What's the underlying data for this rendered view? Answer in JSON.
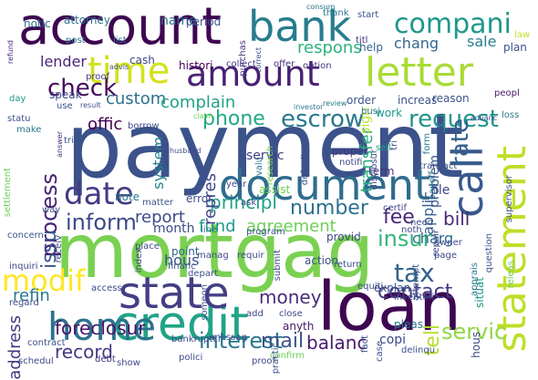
{
  "words": [
    {
      "text": "payment",
      "color": "#3b528b"
    },
    {
      "text": "mortgag",
      "color": "#7ad151"
    },
    {
      "text": "loan",
      "color": "#3e0751"
    },
    {
      "text": "account",
      "color": "#3e0751"
    },
    {
      "text": "credit",
      "color": "#20a386"
    },
    {
      "text": "document",
      "color": "#2f6c8e"
    },
    {
      "text": "state",
      "color": "#433e85"
    },
    {
      "text": "statement",
      "color": "#bddf26"
    },
    {
      "text": "letter",
      "color": "#a8db34"
    },
    {
      "text": "time",
      "color": "#d2e21b"
    },
    {
      "text": "amount",
      "color": "#482173"
    },
    {
      "text": "bank",
      "color": "#287c8e"
    },
    {
      "text": "call",
      "color": "#38598c"
    },
    {
      "text": "home",
      "color": "#2c728e"
    },
    {
      "text": "date",
      "color": "#443a83"
    },
    {
      "text": "compani",
      "color": "#1f988b"
    },
    {
      "text": "escrow",
      "color": "#2a788e"
    },
    {
      "text": "inform",
      "color": "#3e4989"
    },
    {
      "text": "check",
      "color": "#460a5d"
    },
    {
      "text": "request",
      "color": "#1f948c"
    },
    {
      "text": "tax",
      "color": "#33638d"
    },
    {
      "text": "modif",
      "color": "#fde725"
    },
    {
      "text": "insur",
      "color": "#35b779"
    },
    {
      "text": "interest",
      "color": "#2a788e"
    },
    {
      "text": "servic",
      "color": "#8fd744"
    },
    {
      "text": "contact",
      "color": "#443a83"
    },
    {
      "text": "money",
      "color": "#472d7b"
    },
    {
      "text": "fee",
      "color": "#482878"
    },
    {
      "text": "phone",
      "color": "#22a884"
    },
    {
      "text": "rate",
      "color": "#355f8d"
    },
    {
      "text": "report",
      "color": "#3e4989"
    },
    {
      "text": "number",
      "color": "#2d708e"
    },
    {
      "text": "foreclosur",
      "color": "#481467"
    },
    {
      "text": "process",
      "color": "#482173"
    },
    {
      "text": "mail",
      "color": "#3b528b"
    },
    {
      "text": "balanc",
      "color": "#481b6d"
    },
    {
      "text": "principl",
      "color": "#1fa187"
    },
    {
      "text": "bill",
      "color": "#482878"
    },
    {
      "text": "tell",
      "color": "#b5de2b"
    },
    {
      "text": "custom",
      "color": "#2c728e"
    },
    {
      "text": "complain",
      "color": "#20a386"
    },
    {
      "text": "transfer",
      "color": "#29af7f"
    },
    {
      "text": "respons",
      "color": "#2db27d"
    },
    {
      "text": "issu",
      "color": "#3b528b"
    },
    {
      "text": "record",
      "color": "#453781"
    },
    {
      "text": "refin",
      "color": "#2a788e"
    },
    {
      "text": "offic",
      "color": "#440154"
    },
    {
      "text": "fund",
      "color": "#1e9b8a"
    },
    {
      "text": "agreement",
      "color": "#6ece58"
    },
    {
      "text": "lender",
      "color": "#482576"
    },
    {
      "text": "repres",
      "color": "#3f4788"
    },
    {
      "text": "chang",
      "color": "#31688e"
    },
    {
      "text": "sale",
      "color": "#277f8e"
    },
    {
      "text": "system",
      "color": "#26828e"
    },
    {
      "text": "applic",
      "color": "#355f8d"
    },
    {
      "text": "problem",
      "color": "#3b528b"
    },
    {
      "text": "month",
      "color": "#3e4989"
    },
    {
      "text": "charg",
      "color": "#2f6c8e"
    },
    {
      "text": "file",
      "color": "#3e4989"
    },
    {
      "text": "hous",
      "color": "#3b528b"
    },
    {
      "text": "address",
      "color": "#453781"
    },
    {
      "text": "copi",
      "color": "#3e4989"
    },
    {
      "text": "pleas",
      "color": "#2a788e"
    },
    {
      "text": "point",
      "color": "#33638d"
    },
    {
      "text": "sign",
      "color": "#bddf26"
    },
    {
      "text": "anyth",
      "color": "#481769"
    },
    {
      "text": "name",
      "color": "#2c728e"
    },
    {
      "text": "notic",
      "color": "#2d708e"
    },
    {
      "text": "attorney",
      "color": "#2c728e"
    },
    {
      "text": "period",
      "color": "#3b528b"
    },
    {
      "text": "cash",
      "color": "#3f4788"
    },
    {
      "text": "histori",
      "color": "#440154"
    },
    {
      "text": "collect",
      "color": "#433e85"
    },
    {
      "text": "offer",
      "color": "#472d7b"
    },
    {
      "text": "option",
      "color": "#46337f"
    },
    {
      "text": "order",
      "color": "#3b528b"
    },
    {
      "text": "reason",
      "color": "#3b528b"
    },
    {
      "text": "increas",
      "color": "#3b528b"
    },
    {
      "text": "work",
      "color": "#1f988b"
    },
    {
      "text": "busi",
      "color": "#2a788e"
    },
    {
      "text": "help",
      "color": "#33638d"
    },
    {
      "text": "speak",
      "color": "#3e4989"
    },
    {
      "text": "post",
      "color": "#2a788e"
    },
    {
      "text": "list",
      "color": "#2a788e"
    },
    {
      "text": "purchas",
      "color": "#46337f"
    },
    {
      "text": "correct",
      "color": "#3e4989"
    },
    {
      "text": "thank",
      "color": "#2a788e"
    },
    {
      "text": "consum",
      "color": "#2a788e"
    },
    {
      "text": "start",
      "color": "#3b528b"
    },
    {
      "text": "titl",
      "color": "#46337f"
    },
    {
      "text": "plan",
      "color": "#3b528b"
    },
    {
      "text": "law",
      "color": "#bddf26"
    },
    {
      "text": "peopl",
      "color": "#481467"
    },
    {
      "text": "loss",
      "color": "#2a788e"
    },
    {
      "text": "advanc",
      "color": "#3b528b"
    },
    {
      "text": "sell",
      "color": "#20a386"
    },
    {
      "text": "review",
      "color": "#2a788e"
    },
    {
      "text": "investor",
      "color": "#2a788e"
    },
    {
      "text": "use",
      "color": "#3b528b"
    },
    {
      "text": "result",
      "color": "#3b528b"
    },
    {
      "text": "proof",
      "color": "#433e85"
    },
    {
      "text": "advis",
      "color": "#3b528b"
    },
    {
      "text": "borrow",
      "color": "#3e4989"
    },
    {
      "text": "claim",
      "color": "#6ece58"
    },
    {
      "text": "trial",
      "color": "#3b528b"
    },
    {
      "text": "answer",
      "color": "#482878"
    },
    {
      "text": "settlement",
      "color": "#6ece58"
    },
    {
      "text": "make",
      "color": "#2a788e"
    },
    {
      "text": "day",
      "color": "#1f988b"
    },
    {
      "text": "statu",
      "color": "#3b528b"
    },
    {
      "text": "refund",
      "color": "#482878"
    },
    {
      "text": "servic",
      "color": "#433e85"
    },
    {
      "text": "paper",
      "color": "#3e4989"
    },
    {
      "text": "husband",
      "color": "#3e4989"
    },
    {
      "text": "valu",
      "color": "#2a788e"
    },
    {
      "text": "research",
      "color": "#7ad151"
    },
    {
      "text": "default",
      "color": "#3b528b"
    },
    {
      "text": "proper",
      "color": "#46337f"
    },
    {
      "text": "term",
      "color": "#46337f"
    },
    {
      "text": "notifi",
      "color": "#3e4989"
    },
    {
      "text": "disclosur",
      "color": "#3e4989"
    },
    {
      "text": "tri",
      "color": "#3b528b"
    },
    {
      "text": "form",
      "color": "#2a788e"
    },
    {
      "text": "transact",
      "color": "#3b528b"
    },
    {
      "text": "payoff",
      "color": "#2a788e"
    },
    {
      "text": "incom",
      "color": "#3b528b"
    },
    {
      "text": "supervisor",
      "color": "#3b528b"
    },
    {
      "text": "certif",
      "color": "#3e4989"
    },
    {
      "text": "need",
      "color": "#3b528b"
    },
    {
      "text": "noth",
      "color": "#3e4989"
    },
    {
      "text": "provid",
      "color": "#3e4989"
    },
    {
      "text": "owner",
      "color": "#3e4989"
    },
    {
      "text": "question",
      "color": "#3b528b"
    },
    {
      "text": "repair",
      "color": "#3e4989"
    },
    {
      "text": "situat",
      "color": "#1f988b"
    },
    {
      "text": "releas",
      "color": "#6ece58"
    },
    {
      "text": "page",
      "color": "#3e4989"
    },
    {
      "text": "way",
      "color": "#3b528b"
    },
    {
      "text": "note",
      "color": "#2a788e"
    },
    {
      "text": "matter",
      "color": "#3b528b"
    },
    {
      "text": "error",
      "color": "#3e4989"
    },
    {
      "text": "year",
      "color": "#3e4989"
    },
    {
      "text": "assist",
      "color": "#6ece58"
    },
    {
      "text": "ask",
      "color": "#3e4989"
    },
    {
      "text": "place",
      "color": "#3e4989"
    },
    {
      "text": "line",
      "color": "#2a788e"
    },
    {
      "text": "program",
      "color": "#3b528b"
    },
    {
      "text": "concern",
      "color": "#3b528b"
    },
    {
      "text": "inquiri",
      "color": "#3e4989"
    },
    {
      "text": "receiv",
      "color": "#3b528b"
    },
    {
      "text": "access",
      "color": "#3e4989"
    },
    {
      "text": "index",
      "color": "#3e4989"
    },
    {
      "text": "depart",
      "color": "#3b528b"
    },
    {
      "text": "financ",
      "color": "#3b528b"
    },
    {
      "text": "manag",
      "color": "#3e4989"
    },
    {
      "text": "requir",
      "color": "#3e4989"
    },
    {
      "text": "submit",
      "color": "#3e4989"
    },
    {
      "text": "action",
      "color": "#3b528b"
    },
    {
      "text": "return",
      "color": "#3b528b"
    },
    {
      "text": "equiti",
      "color": "#3e4989"
    },
    {
      "text": "explan",
      "color": "#3b528b"
    },
    {
      "text": "inventori",
      "color": "#3e4989"
    },
    {
      "text": "attempt",
      "color": "#3b528b"
    },
    {
      "text": "apprais",
      "color": "#2a788e"
    },
    {
      "text": "regard",
      "color": "#3e4989"
    },
    {
      "text": "contract",
      "color": "#3b528b"
    },
    {
      "text": "schedul",
      "color": "#3e4989"
    },
    {
      "text": "someon",
      "color": "#3b528b"
    },
    {
      "text": "bankruptci",
      "color": "#3e4989"
    },
    {
      "text": "polici",
      "color": "#3e4989"
    },
    {
      "text": "messag",
      "color": "#3b528b"
    },
    {
      "text": "practic",
      "color": "#3b528b"
    },
    {
      "text": "add",
      "color": "#3e4989"
    },
    {
      "text": "close",
      "color": "#3e4989"
    },
    {
      "text": "fact",
      "color": "#3b528b"
    },
    {
      "text": "case",
      "color": "#3e4989"
    },
    {
      "text": "debt",
      "color": "#46337f"
    },
    {
      "text": "show",
      "color": "#3e4989"
    },
    {
      "text": "confirm",
      "color": "#6ece58"
    },
    {
      "text": "proof",
      "color": "#3e4989"
    },
    {
      "text": "delinqu",
      "color": "#3b528b"
    },
    {
      "text": "hous",
      "color": "#3e4989"
    }
  ]
}
